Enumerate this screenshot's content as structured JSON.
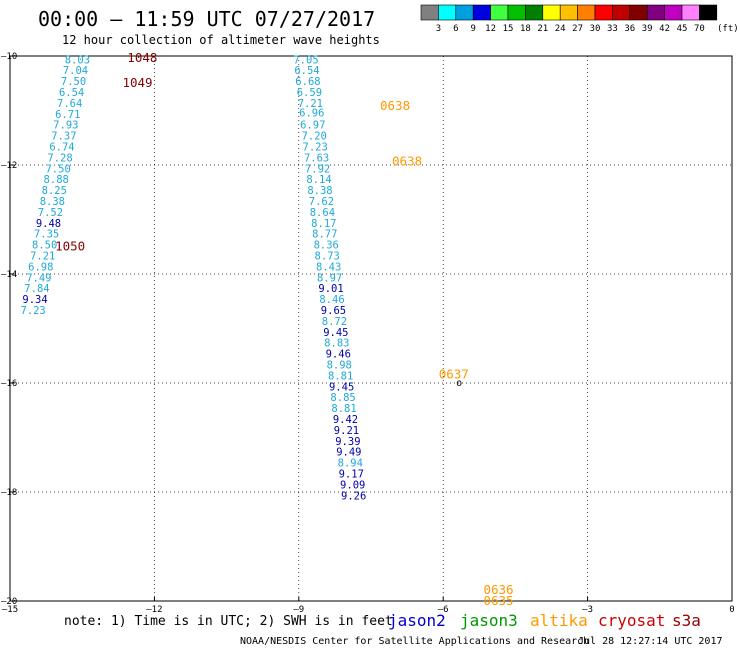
{
  "header": {
    "title": "00:00 – 11:59 UTC 07/27/2017",
    "subtitle": "12 hour collection of altimeter wave heights"
  },
  "legend": {
    "unit": "(ft)",
    "bins": [
      {
        "label": "3",
        "color": "#808080"
      },
      {
        "label": "6",
        "color": "#00ffff"
      },
      {
        "label": "9",
        "color": "#00a0e0"
      },
      {
        "label": "12",
        "color": "#0000e0"
      },
      {
        "label": "15",
        "color": "#40ff40"
      },
      {
        "label": "18",
        "color": "#00c000"
      },
      {
        "label": "21",
        "color": "#008000"
      },
      {
        "label": "24",
        "color": "#ffff00"
      },
      {
        "label": "27",
        "color": "#ffc000"
      },
      {
        "label": "30",
        "color": "#ff8000"
      },
      {
        "label": "33",
        "color": "#ff0000"
      },
      {
        "label": "36",
        "color": "#c00000"
      },
      {
        "label": "39",
        "color": "#800000"
      },
      {
        "label": "42",
        "color": "#800080"
      },
      {
        "label": "45",
        "color": "#c000c0"
      },
      {
        "label": "70",
        "color": "#ff80ff"
      },
      {
        "label": "",
        "color": "#000000"
      }
    ]
  },
  "note": "note:  1) Time is in UTC;  2) SWH is in feet",
  "satellites": [
    {
      "name": "jason2",
      "color": "#0000cc"
    },
    {
      "name": "jason3",
      "color": "#009900"
    },
    {
      "name": "altika",
      "color": "#ff9900"
    },
    {
      "name": "cryosat",
      "color": "#cc0000"
    },
    {
      "name": "s3a",
      "color": "#990000"
    }
  ],
  "footer": {
    "credit": "NOAA/NESDIS Center for Satellite Applications and Research",
    "timestamp": "Jul 28 12:27:14 UTC 2017"
  },
  "colors": {
    "swh_6_9": "#1fa9d8",
    "swh_9_12": "#0000aa",
    "altika": "#ff9900",
    "cryosat": "#880000"
  },
  "chart_data": {
    "type": "scatter",
    "xlim": [
      -15,
      0
    ],
    "ylim": [
      -20,
      -10
    ],
    "x_ticks": [
      -15,
      -12,
      -9,
      -6,
      -3,
      0
    ],
    "y_ticks": [
      -10,
      -12,
      -14,
      -16,
      -18,
      -20
    ],
    "x_tick_labels": [
      "–15",
      "–12",
      "–9",
      "–6",
      "–3",
      "0"
    ],
    "y_tick_labels": [
      "–10",
      "–12",
      "–14",
      "–16",
      "–18",
      "–20"
    ],
    "grid": "dotted",
    "swh_points": [
      {
        "x": -13.6,
        "y": -10.06,
        "v": "8.03"
      },
      {
        "x": -13.64,
        "y": -10.26,
        "v": "7.04"
      },
      {
        "x": -13.68,
        "y": -10.46,
        "v": "7.50"
      },
      {
        "x": -13.72,
        "y": -10.66,
        "v": "6.54"
      },
      {
        "x": -13.76,
        "y": -10.86,
        "v": "7.64"
      },
      {
        "x": -13.8,
        "y": -11.06,
        "v": "6.71"
      },
      {
        "x": -13.84,
        "y": -11.26,
        "v": "7.93"
      },
      {
        "x": -13.88,
        "y": -11.46,
        "v": "7.37"
      },
      {
        "x": -13.92,
        "y": -11.66,
        "v": "6.74"
      },
      {
        "x": -13.96,
        "y": -11.86,
        "v": "7.28"
      },
      {
        "x": -14.0,
        "y": -12.06,
        "v": "7.50"
      },
      {
        "x": -14.04,
        "y": -12.26,
        "v": "8.88"
      },
      {
        "x": -14.08,
        "y": -12.46,
        "v": "8.25"
      },
      {
        "x": -14.12,
        "y": -12.66,
        "v": "8.38"
      },
      {
        "x": -14.16,
        "y": -12.86,
        "v": "7.52"
      },
      {
        "x": -14.2,
        "y": -13.06,
        "v": "9.48"
      },
      {
        "x": -14.24,
        "y": -13.26,
        "v": "7.35"
      },
      {
        "x": -14.28,
        "y": -13.46,
        "v": "8.50"
      },
      {
        "x": -14.32,
        "y": -13.66,
        "v": "7.21"
      },
      {
        "x": -14.36,
        "y": -13.86,
        "v": "6.98"
      },
      {
        "x": -14.4,
        "y": -14.06,
        "v": "7.49"
      },
      {
        "x": -14.44,
        "y": -14.26,
        "v": "7.84"
      },
      {
        "x": -14.48,
        "y": -14.46,
        "v": "9.34"
      },
      {
        "x": -14.52,
        "y": -14.66,
        "v": "7.23"
      },
      {
        "x": -8.85,
        "y": -10.06,
        "v": "7.05"
      },
      {
        "x": -8.83,
        "y": -10.26,
        "v": "6.54"
      },
      {
        "x": -8.81,
        "y": -10.46,
        "v": "6.68"
      },
      {
        "x": -8.78,
        "y": -10.66,
        "v": "6.59"
      },
      {
        "x": -8.76,
        "y": -10.86,
        "v": "7.21"
      },
      {
        "x": -8.73,
        "y": -11.04,
        "v": "6.96"
      },
      {
        "x": -8.71,
        "y": -11.26,
        "v": "6.97"
      },
      {
        "x": -8.68,
        "y": -11.46,
        "v": "7.20"
      },
      {
        "x": -8.66,
        "y": -11.66,
        "v": "7.23"
      },
      {
        "x": -8.63,
        "y": -11.86,
        "v": "7.63"
      },
      {
        "x": -8.61,
        "y": -12.06,
        "v": "7.92"
      },
      {
        "x": -8.58,
        "y": -12.26,
        "v": "8.14"
      },
      {
        "x": -8.56,
        "y": -12.46,
        "v": "8.38"
      },
      {
        "x": -8.53,
        "y": -12.66,
        "v": "7.62"
      },
      {
        "x": -8.51,
        "y": -12.86,
        "v": "8.64"
      },
      {
        "x": -8.48,
        "y": -13.06,
        "v": "8.17"
      },
      {
        "x": -8.46,
        "y": -13.26,
        "v": "8.77"
      },
      {
        "x": -8.43,
        "y": -13.46,
        "v": "8.36"
      },
      {
        "x": -8.41,
        "y": -13.66,
        "v": "8.73"
      },
      {
        "x": -8.38,
        "y": -13.86,
        "v": "8.43"
      },
      {
        "x": -8.36,
        "y": -14.06,
        "v": "8.97"
      },
      {
        "x": -8.33,
        "y": -14.26,
        "v": "9.01"
      },
      {
        "x": -8.31,
        "y": -14.46,
        "v": "8.46"
      },
      {
        "x": -8.28,
        "y": -14.66,
        "v": "9.65"
      },
      {
        "x": -8.26,
        "y": -14.86,
        "v": "8.72"
      },
      {
        "x": -8.23,
        "y": -15.06,
        "v": "9.45"
      },
      {
        "x": -8.21,
        "y": -15.26,
        "v": "8.83"
      },
      {
        "x": -8.18,
        "y": -15.46,
        "v": "9.46"
      },
      {
        "x": -8.16,
        "y": -15.66,
        "v": "8.98"
      },
      {
        "x": -8.13,
        "y": -15.86,
        "v": "8.81"
      },
      {
        "x": -8.11,
        "y": -16.06,
        "v": "9.45"
      },
      {
        "x": -8.08,
        "y": -16.26,
        "v": "8.85"
      },
      {
        "x": -8.06,
        "y": -16.46,
        "v": "8.81"
      },
      {
        "x": -8.03,
        "y": -16.66,
        "v": "9.42"
      },
      {
        "x": -8.01,
        "y": -16.86,
        "v": "9.21"
      },
      {
        "x": -7.98,
        "y": -17.06,
        "v": "9.39"
      },
      {
        "x": -7.96,
        "y": -17.26,
        "v": "9.49"
      },
      {
        "x": -7.93,
        "y": -17.46,
        "v": "8.94"
      },
      {
        "x": -7.91,
        "y": -17.66,
        "v": "9.17"
      },
      {
        "x": -7.88,
        "y": -17.86,
        "v": "9.09"
      },
      {
        "x": -7.86,
        "y": -18.06,
        "v": "9.26"
      }
    ],
    "pass_times": [
      {
        "x": -12.25,
        "y": -10.02,
        "time": "1048",
        "satellite": "cryosat"
      },
      {
        "x": -12.35,
        "y": -10.48,
        "time": "1049",
        "satellite": "cryosat"
      },
      {
        "x": -13.75,
        "y": -13.48,
        "time": "1050",
        "satellite": "cryosat"
      },
      {
        "x": -7.0,
        "y": -10.9,
        "time": "0638",
        "satellite": "altika"
      },
      {
        "x": -6.75,
        "y": -11.92,
        "time": "0638",
        "satellite": "altika"
      },
      {
        "x": -5.78,
        "y": -15.83,
        "time": "0637",
        "satellite": "altika"
      },
      {
        "x": -4.85,
        "y": -19.78,
        "time": "0636",
        "satellite": "altika"
      },
      {
        "x": -4.85,
        "y": -19.98,
        "time": "0635",
        "satellite": "altika"
      }
    ],
    "markers": [
      {
        "x": -5.67,
        "y": -16.0,
        "symbol": "o"
      }
    ]
  }
}
